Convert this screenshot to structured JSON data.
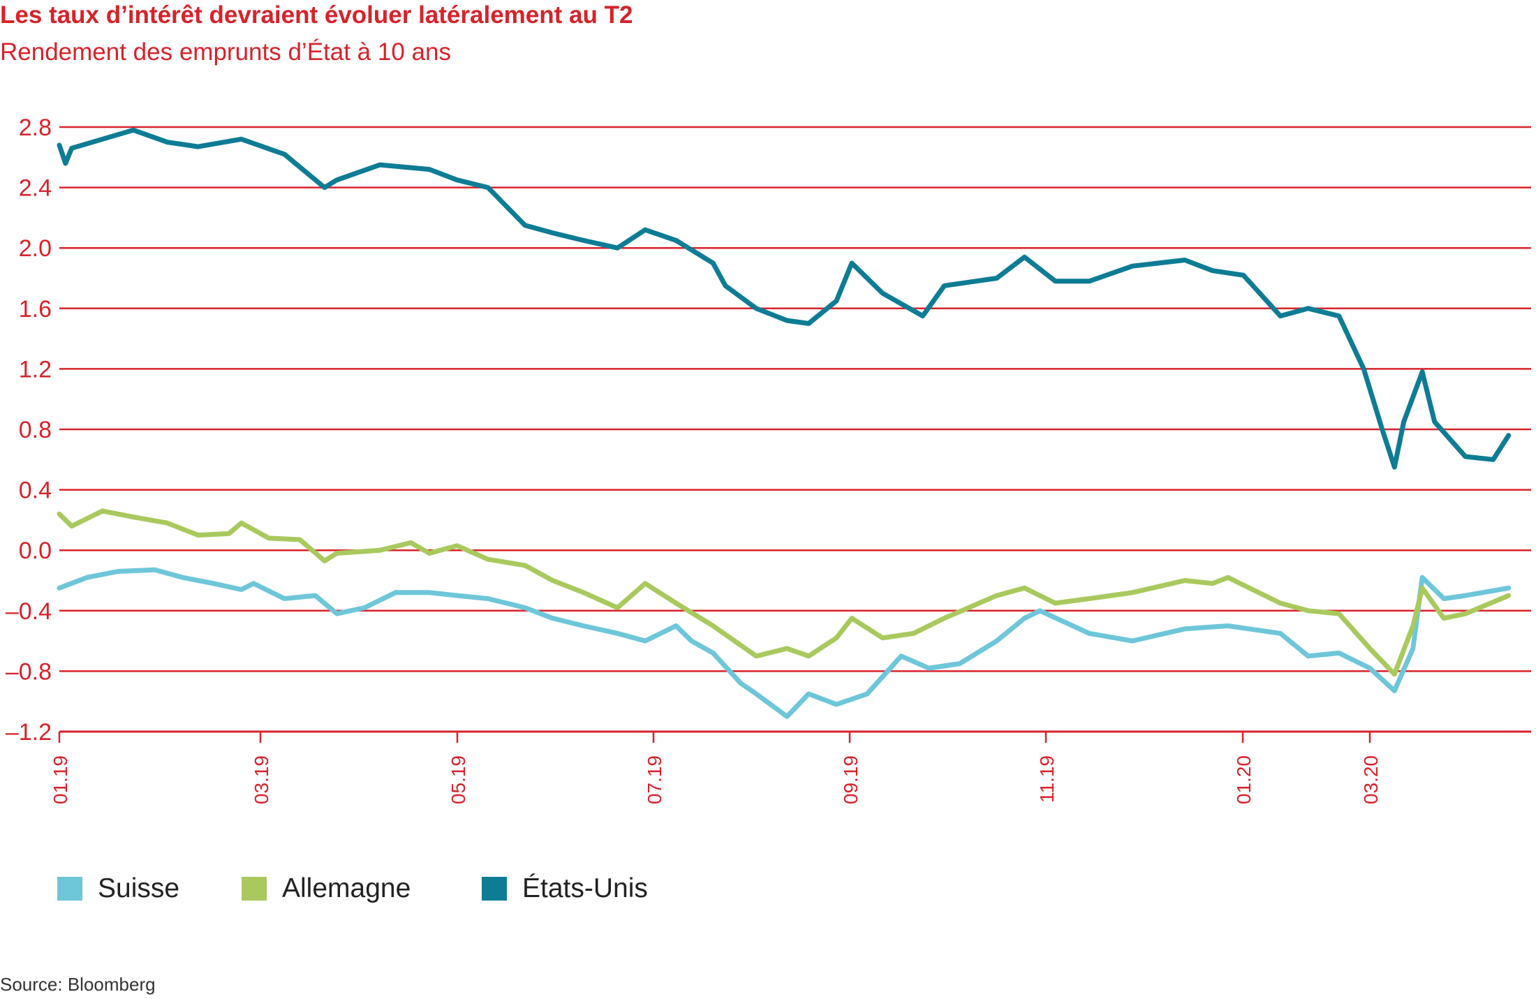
{
  "title": "Les taux d’intérêt devraient évoluer latéralement au T2",
  "subtitle": "Rendement des emprunts d’État à 10 ans",
  "source": "Source: Bloomberg",
  "colors": {
    "title": "#d8222a",
    "grid": "#d8222a",
    "axis_text": "#d8222a"
  },
  "chart_data": {
    "type": "line",
    "x_tick_labels": [
      "01.19",
      "03.19",
      "05.19",
      "07.19",
      "09.19",
      "11.19",
      "01.20",
      "03.20"
    ],
    "y_tick_labels": [
      "2.8",
      "2.4",
      "2.0",
      "1.6",
      "1.2",
      "0.8",
      "0.4",
      "0.0",
      "–0.4",
      "–0.8",
      "–1.2"
    ],
    "y_ticks": [
      2.8,
      2.4,
      2.0,
      1.6,
      1.2,
      0.8,
      0.4,
      0.0,
      -0.4,
      -0.8,
      -1.2
    ],
    "ylim": [
      -1.2,
      2.8
    ],
    "x_range": [
      "2019-01-01",
      "2020-04-15"
    ],
    "grid": "horizontal",
    "legend_position": "bottom-left",
    "series": [
      {
        "name": "Suisse",
        "color": "#6ec6d9",
        "points": [
          [
            "2019-01-01",
            -0.25
          ],
          [
            "2019-01-10",
            -0.18
          ],
          [
            "2019-01-20",
            -0.14
          ],
          [
            "2019-02-01",
            -0.13
          ],
          [
            "2019-02-10",
            -0.18
          ],
          [
            "2019-02-20",
            -0.22
          ],
          [
            "2019-03-01",
            -0.26
          ],
          [
            "2019-03-05",
            -0.22
          ],
          [
            "2019-03-15",
            -0.32
          ],
          [
            "2019-03-25",
            -0.3
          ],
          [
            "2019-04-01",
            -0.42
          ],
          [
            "2019-04-10",
            -0.38
          ],
          [
            "2019-04-20",
            -0.28
          ],
          [
            "2019-05-01",
            -0.28
          ],
          [
            "2019-05-10",
            -0.3
          ],
          [
            "2019-05-20",
            -0.32
          ],
          [
            "2019-06-01",
            -0.38
          ],
          [
            "2019-06-10",
            -0.45
          ],
          [
            "2019-06-20",
            -0.5
          ],
          [
            "2019-07-01",
            -0.55
          ],
          [
            "2019-07-10",
            -0.6
          ],
          [
            "2019-07-20",
            -0.5
          ],
          [
            "2019-07-25",
            -0.6
          ],
          [
            "2019-08-01",
            -0.68
          ],
          [
            "2019-08-10",
            -0.88
          ],
          [
            "2019-08-15",
            -0.95
          ],
          [
            "2019-08-25",
            -1.1
          ],
          [
            "2019-09-01",
            -0.95
          ],
          [
            "2019-09-10",
            -1.02
          ],
          [
            "2019-09-20",
            -0.95
          ],
          [
            "2019-10-01",
            -0.7
          ],
          [
            "2019-10-10",
            -0.78
          ],
          [
            "2019-10-20",
            -0.75
          ],
          [
            "2019-11-01",
            -0.6
          ],
          [
            "2019-11-10",
            -0.45
          ],
          [
            "2019-11-15",
            -0.4
          ],
          [
            "2019-12-01",
            -0.55
          ],
          [
            "2019-12-15",
            -0.6
          ],
          [
            "2020-01-01",
            -0.52
          ],
          [
            "2020-01-15",
            -0.5
          ],
          [
            "2020-02-01",
            -0.55
          ],
          [
            "2020-02-10",
            -0.7
          ],
          [
            "2020-02-20",
            -0.68
          ],
          [
            "2020-03-01",
            -0.78
          ],
          [
            "2020-03-09",
            -0.93
          ],
          [
            "2020-03-15",
            -0.65
          ],
          [
            "2020-03-18",
            -0.18
          ],
          [
            "2020-03-25",
            -0.32
          ],
          [
            "2020-04-01",
            -0.3
          ],
          [
            "2020-04-15",
            -0.25
          ]
        ]
      },
      {
        "name": "Allemagne",
        "color": "#a9c95e",
        "points": [
          [
            "2019-01-01",
            0.24
          ],
          [
            "2019-01-05",
            0.16
          ],
          [
            "2019-01-15",
            0.26
          ],
          [
            "2019-01-25",
            0.22
          ],
          [
            "2019-02-05",
            0.18
          ],
          [
            "2019-02-15",
            0.1
          ],
          [
            "2019-02-25",
            0.11
          ],
          [
            "2019-03-01",
            0.18
          ],
          [
            "2019-03-10",
            0.08
          ],
          [
            "2019-03-20",
            0.07
          ],
          [
            "2019-03-28",
            -0.07
          ],
          [
            "2019-04-01",
            -0.02
          ],
          [
            "2019-04-15",
            0.0
          ],
          [
            "2019-04-25",
            0.05
          ],
          [
            "2019-05-01",
            -0.02
          ],
          [
            "2019-05-10",
            0.03
          ],
          [
            "2019-05-20",
            -0.06
          ],
          [
            "2019-06-01",
            -0.1
          ],
          [
            "2019-06-10",
            -0.2
          ],
          [
            "2019-06-20",
            -0.28
          ],
          [
            "2019-07-01",
            -0.38
          ],
          [
            "2019-07-10",
            -0.22
          ],
          [
            "2019-07-20",
            -0.35
          ],
          [
            "2019-08-01",
            -0.5
          ],
          [
            "2019-08-15",
            -0.7
          ],
          [
            "2019-08-25",
            -0.65
          ],
          [
            "2019-09-01",
            -0.7
          ],
          [
            "2019-09-10",
            -0.58
          ],
          [
            "2019-09-15",
            -0.45
          ],
          [
            "2019-09-25",
            -0.58
          ],
          [
            "2019-10-05",
            -0.55
          ],
          [
            "2019-10-15",
            -0.45
          ],
          [
            "2019-11-01",
            -0.3
          ],
          [
            "2019-11-10",
            -0.25
          ],
          [
            "2019-11-20",
            -0.35
          ],
          [
            "2019-12-01",
            -0.32
          ],
          [
            "2019-12-15",
            -0.28
          ],
          [
            "2020-01-01",
            -0.2
          ],
          [
            "2020-01-10",
            -0.22
          ],
          [
            "2020-01-15",
            -0.18
          ],
          [
            "2020-02-01",
            -0.35
          ],
          [
            "2020-02-10",
            -0.4
          ],
          [
            "2020-02-20",
            -0.42
          ],
          [
            "2020-03-01",
            -0.65
          ],
          [
            "2020-03-09",
            -0.82
          ],
          [
            "2020-03-15",
            -0.5
          ],
          [
            "2020-03-18",
            -0.25
          ],
          [
            "2020-03-25",
            -0.45
          ],
          [
            "2020-04-01",
            -0.42
          ],
          [
            "2020-04-15",
            -0.3
          ]
        ]
      },
      {
        "name": "États-Unis",
        "color": "#0d7c94",
        "points": [
          [
            "2019-01-01",
            2.68
          ],
          [
            "2019-01-03",
            2.56
          ],
          [
            "2019-01-05",
            2.66
          ],
          [
            "2019-01-15",
            2.72
          ],
          [
            "2019-01-25",
            2.78
          ],
          [
            "2019-02-05",
            2.7
          ],
          [
            "2019-02-15",
            2.67
          ],
          [
            "2019-03-01",
            2.72
          ],
          [
            "2019-03-15",
            2.62
          ],
          [
            "2019-03-28",
            2.4
          ],
          [
            "2019-04-01",
            2.45
          ],
          [
            "2019-04-15",
            2.55
          ],
          [
            "2019-05-01",
            2.52
          ],
          [
            "2019-05-10",
            2.45
          ],
          [
            "2019-05-20",
            2.4
          ],
          [
            "2019-06-01",
            2.15
          ],
          [
            "2019-06-10",
            2.1
          ],
          [
            "2019-06-20",
            2.05
          ],
          [
            "2019-07-01",
            2.0
          ],
          [
            "2019-07-10",
            2.12
          ],
          [
            "2019-07-20",
            2.05
          ],
          [
            "2019-08-01",
            1.9
          ],
          [
            "2019-08-05",
            1.75
          ],
          [
            "2019-08-15",
            1.6
          ],
          [
            "2019-08-25",
            1.52
          ],
          [
            "2019-09-01",
            1.5
          ],
          [
            "2019-09-10",
            1.65
          ],
          [
            "2019-09-15",
            1.9
          ],
          [
            "2019-09-25",
            1.7
          ],
          [
            "2019-10-08",
            1.55
          ],
          [
            "2019-10-15",
            1.75
          ],
          [
            "2019-11-01",
            1.8
          ],
          [
            "2019-11-10",
            1.94
          ],
          [
            "2019-11-20",
            1.78
          ],
          [
            "2019-12-01",
            1.78
          ],
          [
            "2019-12-15",
            1.88
          ],
          [
            "2020-01-01",
            1.92
          ],
          [
            "2020-01-10",
            1.85
          ],
          [
            "2020-01-20",
            1.82
          ],
          [
            "2020-02-01",
            1.55
          ],
          [
            "2020-02-10",
            1.6
          ],
          [
            "2020-02-20",
            1.55
          ],
          [
            "2020-02-28",
            1.2
          ],
          [
            "2020-03-05",
            0.8
          ],
          [
            "2020-03-09",
            0.55
          ],
          [
            "2020-03-12",
            0.85
          ],
          [
            "2020-03-18",
            1.18
          ],
          [
            "2020-03-22",
            0.85
          ],
          [
            "2020-04-01",
            0.62
          ],
          [
            "2020-04-10",
            0.6
          ],
          [
            "2020-04-15",
            0.76
          ]
        ]
      }
    ]
  }
}
